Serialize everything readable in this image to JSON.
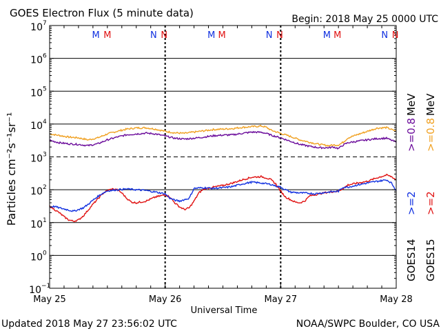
{
  "header": {
    "title": "GOES Electron Flux (5 minute data)",
    "begin": "Begin: 2018 May 25 0000 UTC"
  },
  "footer": {
    "updated": "Updated 2018 May 27 23:56:02 UTC",
    "credit": "NOAA/SWPC Boulder, CO USA"
  },
  "colors": {
    "goes14_2mev": "#1030e0",
    "goes15_2mev": "#e01010",
    "goes14_08mev": "#6a0a9a",
    "goes15_08mev": "#f0a020",
    "axis": "#000000"
  },
  "chart_data": {
    "type": "line",
    "title": "GOES Electron Flux (5 minute data)",
    "xlabel": "Universal Time",
    "ylabel": "Particles cm⁻²s⁻¹sr⁻¹",
    "yscale": "log",
    "ylim": [
      0.1,
      10000000
    ],
    "xlim": [
      0,
      72
    ],
    "x_unit": "hours since 2018 May 25 0000 UTC",
    "x_ticks": [
      {
        "x": 0,
        "label": "May 25"
      },
      {
        "x": 24,
        "label": "May 26"
      },
      {
        "x": 48,
        "label": "May 27"
      },
      {
        "x": 72,
        "label": "May 28"
      }
    ],
    "y_ticks": [
      {
        "v": 10000000,
        "base": "10",
        "exp": "7"
      },
      {
        "v": 1000000,
        "base": "10",
        "exp": "6"
      },
      {
        "v": 100000,
        "base": "10",
        "exp": "5"
      },
      {
        "v": 10000,
        "base": "10",
        "exp": "4"
      },
      {
        "v": 1000,
        "base": "10",
        "exp": "3"
      },
      {
        "v": 100,
        "base": "10",
        "exp": "2"
      },
      {
        "v": 10,
        "base": "10",
        "exp": "1"
      },
      {
        "v": 1,
        "base": "10",
        "exp": "0"
      },
      {
        "v": 0.1,
        "base": "10",
        "exp": "−1"
      }
    ],
    "grid": "horizontal solid at decades; dashed at 1000 (threshold)",
    "threshold": 1000,
    "day_boundaries": [
      24,
      48
    ],
    "markers": [
      {
        "x": 9.6,
        "label": "M",
        "color": "#1030e0"
      },
      {
        "x": 12.0,
        "label": "M",
        "color": "#e01010"
      },
      {
        "x": 21.6,
        "label": "N",
        "color": "#1030e0"
      },
      {
        "x": 23.8,
        "label": "N",
        "color": "#e01010"
      },
      {
        "x": 33.6,
        "label": "M",
        "color": "#1030e0"
      },
      {
        "x": 35.8,
        "label": "M",
        "color": "#e01010"
      },
      {
        "x": 45.6,
        "label": "N",
        "color": "#1030e0"
      },
      {
        "x": 47.8,
        "label": "N",
        "color": "#e01010"
      },
      {
        "x": 57.6,
        "label": "M",
        "color": "#1030e0"
      },
      {
        "x": 59.8,
        "label": "M",
        "color": "#e01010"
      },
      {
        "x": 69.6,
        "label": "N",
        "color": "#1030e0"
      },
      {
        "x": 71.8,
        "label": "N",
        "color": "#e01010"
      }
    ],
    "legend": [
      {
        "text": "GOES15 >=0.8 MeV",
        "color": "#f0a020"
      },
      {
        "text": "GOES14 >=0.8 MeV",
        "color": "#6a0a9a"
      },
      {
        "text": "GOES15 >=2 MeV",
        "color": "#e01010"
      },
      {
        "text": "GOES14 >=2 MeV",
        "color": "#1030e0"
      }
    ],
    "legend_labels": {
      "goes14": "GOES14",
      "goes15": "GOES15",
      "ge2_14": ">=2",
      "ge2_15": ">=2",
      "ge08_14": ">=0.8",
      "ge08_15": ">=0.8",
      "mev": "MeV"
    },
    "legend_placement": "right side, vertical",
    "series": [
      {
        "name": "GOES15 >=0.8 MeV",
        "color": "#f0a020",
        "points": [
          [
            0,
            5000
          ],
          [
            2,
            4500
          ],
          [
            4,
            4000
          ],
          [
            6,
            3800
          ],
          [
            8,
            3300
          ],
          [
            10,
            3800
          ],
          [
            12,
            5000
          ],
          [
            14,
            6000
          ],
          [
            16,
            7000
          ],
          [
            18,
            7600
          ],
          [
            20,
            7700
          ],
          [
            22,
            7000
          ],
          [
            24,
            6000
          ],
          [
            26,
            5400
          ],
          [
            28,
            5200
          ],
          [
            30,
            5700
          ],
          [
            32,
            6200
          ],
          [
            34,
            6800
          ],
          [
            36,
            7000
          ],
          [
            38,
            7300
          ],
          [
            40,
            7900
          ],
          [
            42,
            8300
          ],
          [
            44,
            8700
          ],
          [
            45,
            8000
          ],
          [
            46,
            6500
          ],
          [
            48,
            5200
          ],
          [
            50,
            4200
          ],
          [
            52,
            3300
          ],
          [
            54,
            2800
          ],
          [
            56,
            2400
          ],
          [
            58,
            2200
          ],
          [
            59,
            2300
          ],
          [
            60,
            2300
          ],
          [
            61,
            2800
          ],
          [
            62,
            3800
          ],
          [
            64,
            4800
          ],
          [
            66,
            6000
          ],
          [
            68,
            7500
          ],
          [
            70,
            7800
          ],
          [
            72,
            6000
          ]
        ]
      },
      {
        "name": "GOES14 >=0.8 MeV",
        "color": "#6a0a9a",
        "points": [
          [
            0,
            3200
          ],
          [
            2,
            2700
          ],
          [
            4,
            2500
          ],
          [
            6,
            2400
          ],
          [
            8,
            2200
          ],
          [
            10,
            2500
          ],
          [
            12,
            3300
          ],
          [
            14,
            4000
          ],
          [
            16,
            4700
          ],
          [
            18,
            5000
          ],
          [
            20,
            5300
          ],
          [
            22,
            5000
          ],
          [
            24,
            4300
          ],
          [
            26,
            3700
          ],
          [
            28,
            3500
          ],
          [
            30,
            3700
          ],
          [
            32,
            4000
          ],
          [
            34,
            4400
          ],
          [
            36,
            4600
          ],
          [
            38,
            4700
          ],
          [
            40,
            5200
          ],
          [
            42,
            5700
          ],
          [
            44,
            5600
          ],
          [
            45,
            5200
          ],
          [
            46,
            4600
          ],
          [
            48,
            3800
          ],
          [
            50,
            3000
          ],
          [
            52,
            2400
          ],
          [
            54,
            2100
          ],
          [
            56,
            1900
          ],
          [
            58,
            1900
          ],
          [
            59,
            2000
          ],
          [
            60,
            1800
          ],
          [
            61,
            2300
          ],
          [
            62,
            2700
          ],
          [
            64,
            3000
          ],
          [
            66,
            3300
          ],
          [
            68,
            3600
          ],
          [
            70,
            3700
          ],
          [
            72,
            2800
          ]
        ]
      },
      {
        "name": "GOES15 >=2 MeV",
        "color": "#e01010",
        "points": [
          [
            0,
            32
          ],
          [
            1,
            25
          ],
          [
            2,
            20
          ],
          [
            3,
            15
          ],
          [
            4,
            12
          ],
          [
            5,
            11
          ],
          [
            6,
            12
          ],
          [
            7,
            16
          ],
          [
            8,
            24
          ],
          [
            9,
            36
          ],
          [
            10,
            52
          ],
          [
            11,
            75
          ],
          [
            12,
            95
          ],
          [
            13,
            105
          ],
          [
            14,
            100
          ],
          [
            15,
            80
          ],
          [
            16,
            55
          ],
          [
            17,
            42
          ],
          [
            18,
            40
          ],
          [
            20,
            45
          ],
          [
            22,
            60
          ],
          [
            24,
            70
          ],
          [
            25,
            60
          ],
          [
            26,
            40
          ],
          [
            27,
            30
          ],
          [
            28,
            25
          ],
          [
            29,
            28
          ],
          [
            30,
            45
          ],
          [
            31,
            80
          ],
          [
            32,
            105
          ],
          [
            34,
            120
          ],
          [
            36,
            135
          ],
          [
            38,
            160
          ],
          [
            40,
            200
          ],
          [
            42,
            240
          ],
          [
            44,
            250
          ],
          [
            45,
            230
          ],
          [
            46,
            200
          ],
          [
            47,
            150
          ],
          [
            48,
            90
          ],
          [
            49,
            60
          ],
          [
            50,
            50
          ],
          [
            51,
            42
          ],
          [
            52,
            40
          ],
          [
            53,
            45
          ],
          [
            54,
            65
          ],
          [
            55,
            70
          ],
          [
            56,
            75
          ],
          [
            58,
            85
          ],
          [
            60,
            90
          ],
          [
            61,
            110
          ],
          [
            62,
            140
          ],
          [
            64,
            160
          ],
          [
            66,
            180
          ],
          [
            68,
            230
          ],
          [
            70,
            280
          ],
          [
            71,
            250
          ],
          [
            72,
            200
          ]
        ]
      },
      {
        "name": "GOES14 >=2 MeV",
        "color": "#1030e0",
        "points": [
          [
            0,
            30
          ],
          [
            1,
            31
          ],
          [
            2,
            28
          ],
          [
            3,
            26
          ],
          [
            4,
            24
          ],
          [
            5,
            22
          ],
          [
            6,
            25
          ],
          [
            7,
            28
          ],
          [
            8,
            36
          ],
          [
            9,
            48
          ],
          [
            10,
            62
          ],
          [
            11,
            78
          ],
          [
            12,
            92
          ],
          [
            14,
            100
          ],
          [
            16,
            105
          ],
          [
            18,
            100
          ],
          [
            20,
            95
          ],
          [
            22,
            85
          ],
          [
            24,
            75
          ],
          [
            25,
            55
          ],
          [
            26,
            48
          ],
          [
            27,
            45
          ],
          [
            28,
            50
          ],
          [
            29,
            55
          ],
          [
            30,
            110
          ],
          [
            32,
            115
          ],
          [
            34,
            110
          ],
          [
            36,
            115
          ],
          [
            38,
            125
          ],
          [
            40,
            150
          ],
          [
            42,
            170
          ],
          [
            44,
            160
          ],
          [
            46,
            145
          ],
          [
            47,
            130
          ],
          [
            48,
            120
          ],
          [
            49,
            100
          ],
          [
            50,
            85
          ],
          [
            52,
            80
          ],
          [
            54,
            78
          ],
          [
            55,
            75
          ],
          [
            56,
            78
          ],
          [
            58,
            85
          ],
          [
            60,
            90
          ],
          [
            61,
            120
          ],
          [
            62,
            120
          ],
          [
            64,
            140
          ],
          [
            66,
            160
          ],
          [
            68,
            180
          ],
          [
            70,
            200
          ],
          [
            71,
            160
          ],
          [
            72,
            95
          ]
        ]
      }
    ]
  }
}
